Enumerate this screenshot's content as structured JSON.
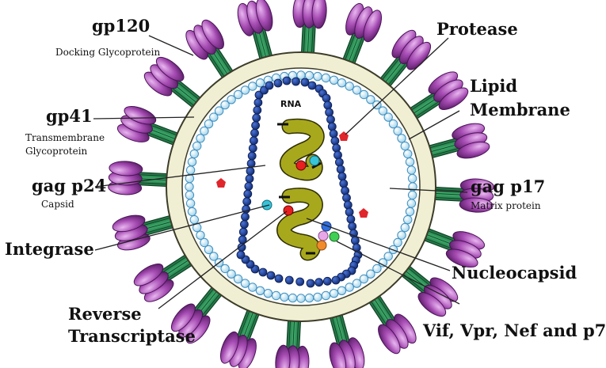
{
  "diagram": {
    "labels": {
      "gp120": {
        "title": "gp120",
        "subtitle": "Docking Glycoprotein"
      },
      "gp41": {
        "title": "gp41",
        "subtitle_line1": "Transmembrane",
        "subtitle_line2": "Glycoprotein"
      },
      "gag_p24": {
        "title": "gag p24",
        "subtitle": "Capsid"
      },
      "integrase": {
        "title": "Integrase"
      },
      "reverse_transcriptase": {
        "title_line1": "Reverse",
        "title_line2": "Transcriptase"
      },
      "protease": {
        "title": "Protease"
      },
      "lipid_membrane": {
        "title_line1": "Lipid",
        "title_line2": "Membrane"
      },
      "gag_p17": {
        "title": "gag p17",
        "subtitle": "Matrix protein"
      },
      "nucleocapsid": {
        "title": "Nucleocapsid"
      },
      "accessory": {
        "title": "Vif, Vpr, Nef and p7"
      },
      "rna": {
        "title": "RNA"
      }
    },
    "colors": {
      "membrane_fill": "#f1efd3",
      "membrane_stroke": "#3c3c2a",
      "matrix_bead": "#bfe3f2",
      "matrix_bead_stroke": "#3f8fc0",
      "capsid_bead": "#1f3f93",
      "rna": "#9b9b16",
      "spike_stem": "#2e8b57",
      "spike_head": "#9b3fa8",
      "protease": "#e0262b",
      "enzyme_red": "#e81f1f",
      "enzyme_cyan": "#37c3d8"
    }
  }
}
